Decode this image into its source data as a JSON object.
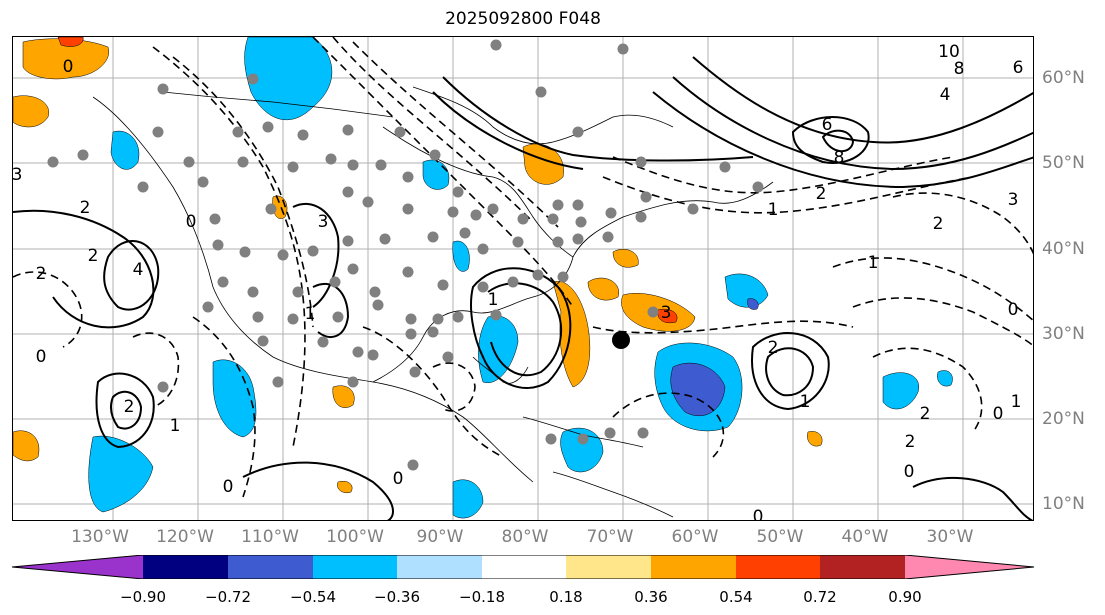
{
  "title": "2025092800 F048",
  "lon_labels": [
    "130°W",
    "120°W",
    "110°W",
    "100°W",
    "90°W",
    "80°W",
    "70°W",
    "60°W",
    "50°W",
    "40°W",
    "30°W"
  ],
  "lat_labels": [
    "60°N",
    "50°N",
    "40°N",
    "30°N",
    "20°N",
    "10°N"
  ],
  "colorbar": {
    "ticks": [
      "−0.90",
      "−0.72",
      "−0.54",
      "−0.36",
      "−0.18",
      "0.18",
      "0.36",
      "0.54",
      "0.72",
      "0.90"
    ],
    "colors": [
      "#9933cc",
      "#000080",
      "#3f5bd0",
      "#00bfff",
      "#b0e0ff",
      "#ffffff",
      "#ffe68a",
      "#ffa500",
      "#ff4000",
      "#b22222",
      "#ff88b0"
    ]
  },
  "contour_labels": [
    "10",
    "8",
    "6",
    "4",
    "6",
    "8",
    "2",
    "3",
    "2",
    "1",
    "0",
    "3",
    "2",
    "1",
    "0",
    "2",
    "1",
    "2",
    "0",
    "3",
    "2",
    "4",
    "2",
    "0",
    "2",
    "0",
    "2",
    "1",
    "3",
    "0",
    "0",
    "0",
    "1",
    "1",
    "1",
    "0"
  ],
  "field_colors": {
    "light_blue": "#00bfff",
    "mid_blue": "#3f5bd0",
    "orange": "#ffa500",
    "red_orange": "#ff4000",
    "marker_gray": "#808080"
  }
}
